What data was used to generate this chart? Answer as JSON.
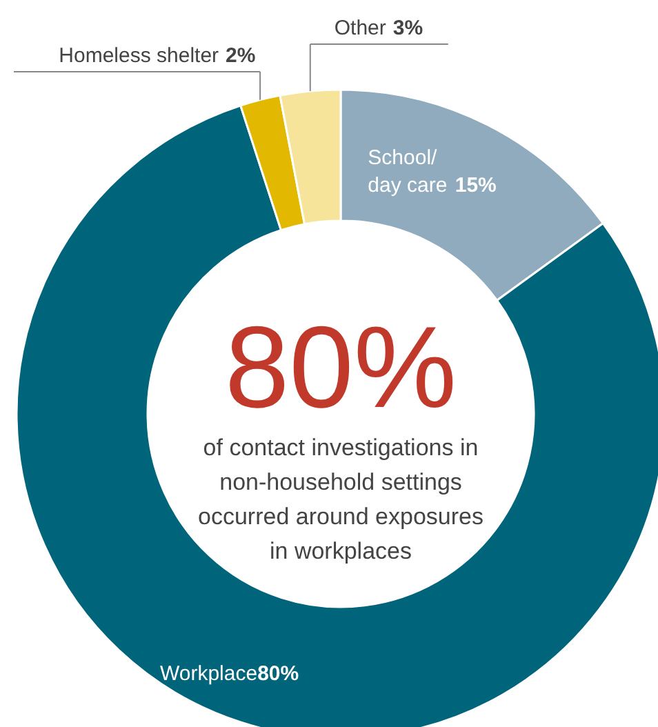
{
  "chart_data": {
    "type": "donut",
    "categories": [
      "School/\nday care",
      "Workplace",
      "Homeless shelter",
      "Other"
    ],
    "values": [
      15,
      80,
      2,
      3
    ],
    "value_labels": [
      "15%",
      "80%",
      "2%",
      "3%"
    ],
    "colors": [
      "#8fabbd",
      "#00657b",
      "#e2b900",
      "#f6e49a"
    ],
    "annotations": [
      "80%",
      "of contact investigations in\nnon-household settings\noccurred around exposures\nin workplaces"
    ]
  }
}
